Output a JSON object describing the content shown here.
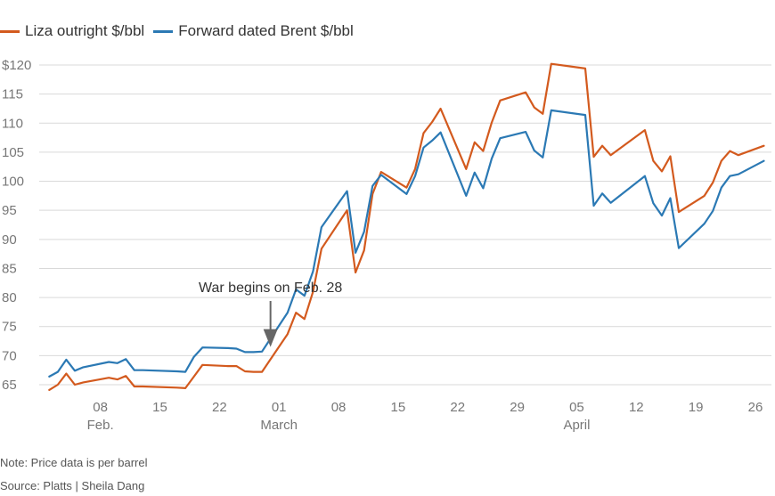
{
  "colors": {
    "liza": "#d35a1e",
    "brent": "#2b79b4",
    "grid": "#d9d9d9",
    "axis_text": "#777777",
    "arrow": "#666666"
  },
  "legend": [
    {
      "label": "Liza outright $/bbl",
      "color": "#d35a1e"
    },
    {
      "label": "Forward dated Brent $/bbl",
      "color": "#2b79b4"
    }
  ],
  "chart_data": {
    "type": "line",
    "ylim": [
      65,
      120
    ],
    "yticks": [
      65,
      70,
      75,
      80,
      85,
      90,
      95,
      100,
      105,
      110,
      115,
      120
    ],
    "ytick_labels": [
      "65",
      "70",
      "75",
      "80",
      "85",
      "90",
      "95",
      "100",
      "105",
      "110",
      "115",
      "$120"
    ],
    "xlim": [
      "2026-02-01",
      "2026-04-26"
    ],
    "xticks": [
      {
        "date": "2026-02-08",
        "label": "08",
        "month": "Feb."
      },
      {
        "date": "2026-02-15",
        "label": "15"
      },
      {
        "date": "2026-02-22",
        "label": "22"
      },
      {
        "date": "2026-03-01",
        "label": "01",
        "month": "March"
      },
      {
        "date": "2026-03-08",
        "label": "08"
      },
      {
        "date": "2026-03-15",
        "label": "15"
      },
      {
        "date": "2026-03-22",
        "label": "22"
      },
      {
        "date": "2026-03-29",
        "label": "29"
      },
      {
        "date": "2026-04-05",
        "label": "05",
        "month": "April"
      },
      {
        "date": "2026-04-12",
        "label": "12"
      },
      {
        "date": "2026-04-19",
        "label": "19"
      },
      {
        "date": "2026-04-26",
        "label": "26"
      }
    ],
    "series": [
      {
        "name": "Liza outright $/bbl",
        "color": "#d35a1e",
        "points": [
          [
            "2026-02-02",
            64.1
          ],
          [
            "2026-02-03",
            65.0
          ],
          [
            "2026-02-04",
            66.9
          ],
          [
            "2026-02-05",
            65.0
          ],
          [
            "2026-02-06",
            65.4
          ],
          [
            "2026-02-09",
            66.2
          ],
          [
            "2026-02-10",
            65.9
          ],
          [
            "2026-02-11",
            66.5
          ],
          [
            "2026-02-12",
            64.7
          ],
          [
            "2026-02-13",
            64.7
          ],
          [
            "2026-02-17",
            64.5
          ],
          [
            "2026-02-18",
            64.4
          ],
          [
            "2026-02-19",
            66.4
          ],
          [
            "2026-02-20",
            68.4
          ],
          [
            "2026-02-23",
            68.2
          ],
          [
            "2026-02-24",
            68.2
          ],
          [
            "2026-02-25",
            67.3
          ],
          [
            "2026-02-26",
            67.2
          ],
          [
            "2026-02-27",
            67.2
          ],
          [
            "2026-03-02",
            73.7
          ],
          [
            "2026-03-03",
            77.4
          ],
          [
            "2026-03-04",
            76.3
          ],
          [
            "2026-03-05",
            81.0
          ],
          [
            "2026-03-06",
            88.4
          ],
          [
            "2026-03-09",
            95.0
          ],
          [
            "2026-03-10",
            84.3
          ],
          [
            "2026-03-11",
            88.1
          ],
          [
            "2026-03-12",
            97.8
          ],
          [
            "2026-03-13",
            101.6
          ],
          [
            "2026-03-16",
            98.9
          ],
          [
            "2026-03-17",
            102.1
          ],
          [
            "2026-03-18",
            108.3
          ],
          [
            "2026-03-19",
            110.2
          ],
          [
            "2026-03-20",
            112.5
          ],
          [
            "2026-03-23",
            102.1
          ],
          [
            "2026-03-24",
            106.7
          ],
          [
            "2026-03-25",
            105.2
          ],
          [
            "2026-03-26",
            110.1
          ],
          [
            "2026-03-27",
            113.9
          ],
          [
            "2026-03-30",
            115.3
          ],
          [
            "2026-03-31",
            112.7
          ],
          [
            "2026-04-01",
            111.6
          ],
          [
            "2026-04-02",
            120.2
          ],
          [
            "2026-04-06",
            119.4
          ],
          [
            "2026-04-07",
            104.2
          ],
          [
            "2026-04-08",
            106.1
          ],
          [
            "2026-04-09",
            104.5
          ],
          [
            "2026-04-13",
            108.8
          ],
          [
            "2026-04-14",
            103.5
          ],
          [
            "2026-04-15",
            101.7
          ],
          [
            "2026-04-16",
            104.3
          ],
          [
            "2026-04-17",
            94.7
          ],
          [
            "2026-04-20",
            97.5
          ],
          [
            "2026-04-21",
            99.8
          ],
          [
            "2026-04-22",
            103.5
          ],
          [
            "2026-04-23",
            105.2
          ],
          [
            "2026-04-24",
            104.5
          ],
          [
            "2026-04-27",
            106.1
          ]
        ]
      },
      {
        "name": "Forward dated Brent $/bbl",
        "color": "#2b79b4",
        "points": [
          [
            "2026-02-02",
            66.4
          ],
          [
            "2026-02-03",
            67.2
          ],
          [
            "2026-02-04",
            69.3
          ],
          [
            "2026-02-05",
            67.4
          ],
          [
            "2026-02-06",
            68.0
          ],
          [
            "2026-02-09",
            68.9
          ],
          [
            "2026-02-10",
            68.7
          ],
          [
            "2026-02-11",
            69.4
          ],
          [
            "2026-02-12",
            67.5
          ],
          [
            "2026-02-13",
            67.5
          ],
          [
            "2026-02-17",
            67.3
          ],
          [
            "2026-02-18",
            67.2
          ],
          [
            "2026-02-19",
            69.8
          ],
          [
            "2026-02-20",
            71.4
          ],
          [
            "2026-02-23",
            71.3
          ],
          [
            "2026-02-24",
            71.2
          ],
          [
            "2026-02-25",
            70.6
          ],
          [
            "2026-02-26",
            70.6
          ],
          [
            "2026-02-27",
            70.7
          ],
          [
            "2026-03-02",
            77.4
          ],
          [
            "2026-03-03",
            81.4
          ],
          [
            "2026-03-04",
            80.3
          ],
          [
            "2026-03-05",
            84.5
          ],
          [
            "2026-03-06",
            92.1
          ],
          [
            "2026-03-09",
            98.3
          ],
          [
            "2026-03-10",
            87.7
          ],
          [
            "2026-03-11",
            91.3
          ],
          [
            "2026-03-12",
            99.2
          ],
          [
            "2026-03-13",
            101.1
          ],
          [
            "2026-03-16",
            97.8
          ],
          [
            "2026-03-17",
            100.9
          ],
          [
            "2026-03-18",
            105.8
          ],
          [
            "2026-03-19",
            107.0
          ],
          [
            "2026-03-20",
            108.4
          ],
          [
            "2026-03-23",
            97.5
          ],
          [
            "2026-03-24",
            101.5
          ],
          [
            "2026-03-25",
            98.8
          ],
          [
            "2026-03-26",
            103.9
          ],
          [
            "2026-03-27",
            107.4
          ],
          [
            "2026-03-30",
            108.5
          ],
          [
            "2026-03-31",
            105.3
          ],
          [
            "2026-04-01",
            104.1
          ],
          [
            "2026-04-02",
            112.2
          ],
          [
            "2026-04-06",
            111.4
          ],
          [
            "2026-04-07",
            95.8
          ],
          [
            "2026-04-08",
            97.9
          ],
          [
            "2026-04-09",
            96.3
          ],
          [
            "2026-04-13",
            100.9
          ],
          [
            "2026-04-14",
            96.2
          ],
          [
            "2026-04-15",
            94.1
          ],
          [
            "2026-04-16",
            97.1
          ],
          [
            "2026-04-17",
            88.5
          ],
          [
            "2026-04-20",
            92.7
          ],
          [
            "2026-04-21",
            94.9
          ],
          [
            "2026-04-22",
            98.9
          ],
          [
            "2026-04-23",
            100.9
          ],
          [
            "2026-04-24",
            101.2
          ],
          [
            "2026-04-27",
            103.5
          ]
        ]
      }
    ],
    "annotations": [
      {
        "text": "War begins on Feb. 28",
        "date": "2026-02-28",
        "value": 71.5
      }
    ]
  },
  "footer": {
    "note": "Note: Price data is per barrel",
    "source": "Source: Platts | Sheila Dang"
  }
}
